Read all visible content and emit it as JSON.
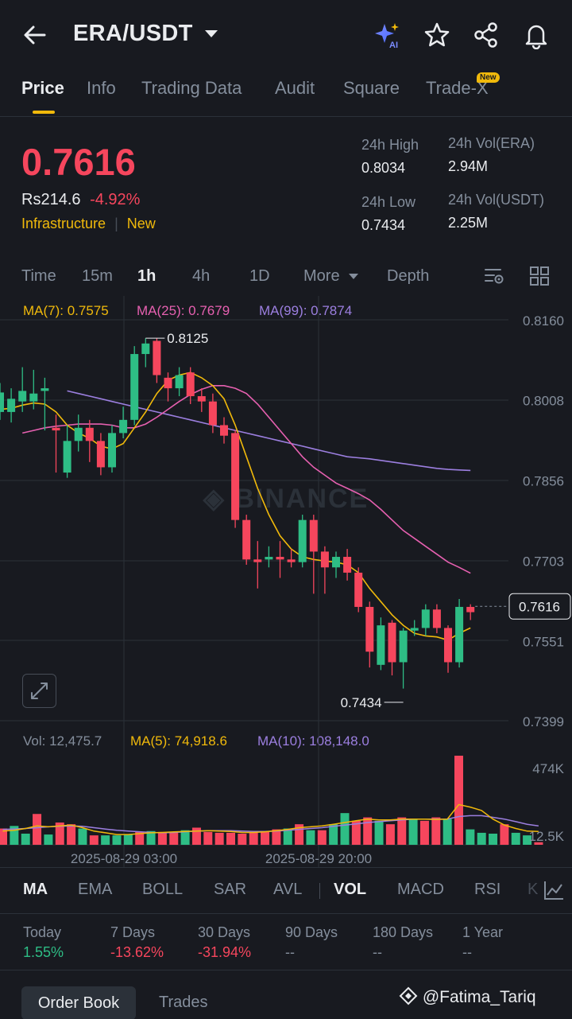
{
  "header": {
    "title": "ERA/USDT"
  },
  "tabs": [
    {
      "label": "Price"
    },
    {
      "label": "Info"
    },
    {
      "label": "Trading Data"
    },
    {
      "label": "Audit"
    },
    {
      "label": "Square"
    },
    {
      "label": "Trade-X",
      "badge": "New"
    }
  ],
  "ticker": {
    "price": "0.7616",
    "fiat": "Rs214.6",
    "change": "-4.92%",
    "tag1": "Infrastructure",
    "tag2": "New",
    "high_label": "24h High",
    "high_value": "0.8034",
    "low_label": "24h Low",
    "low_value": "0.7434",
    "vol_base_label": "24h Vol(ERA)",
    "vol_base_value": "2.94M",
    "vol_quote_label": "24h Vol(USDT)",
    "vol_quote_value": "2.25M"
  },
  "intervals": [
    "Time",
    "15m",
    "1h",
    "4h",
    "1D",
    "More",
    "Depth"
  ],
  "ma_legend": {
    "ma7": "MA(7): 0.7575",
    "ma25": "MA(25): 0.7679",
    "ma99": "MA(99): 0.7874"
  },
  "chart_data": {
    "type": "candlestick",
    "watermark": "BINANCE",
    "price_axis": [
      "0.8160",
      "0.8008",
      "0.7856",
      "0.7703",
      "0.7551",
      "0.7399"
    ],
    "last_price_tag": "0.7616",
    "high_marker": "0.8125",
    "low_marker": "0.7434",
    "x_labels": [
      "2025-08-29 03:00",
      "2025-08-29 20:00"
    ],
    "ylim": [
      0.7399,
      0.816
    ],
    "candles": [
      [
        0.7985,
        0.8022,
        0.797,
        0.804
      ],
      [
        0.7985,
        0.801,
        0.7965,
        0.803
      ],
      [
        0.8005,
        0.8025,
        0.7985,
        0.807
      ],
      [
        0.8005,
        0.802,
        0.799,
        0.8065
      ],
      [
        0.8025,
        0.803,
        0.795,
        0.805
      ],
      [
        0.7955,
        0.795,
        0.787,
        0.798
      ],
      [
        0.787,
        0.793,
        0.786,
        0.796
      ],
      [
        0.793,
        0.7955,
        0.791,
        0.798
      ],
      [
        0.7955,
        0.793,
        0.789,
        0.797
      ],
      [
        0.793,
        0.788,
        0.7865,
        0.7945
      ],
      [
        0.788,
        0.7945,
        0.787,
        0.796
      ],
      [
        0.7945,
        0.797,
        0.7935,
        0.7995
      ],
      [
        0.797,
        0.8095,
        0.796,
        0.811
      ],
      [
        0.8095,
        0.8115,
        0.807,
        0.8125
      ],
      [
        0.812,
        0.8055,
        0.804,
        0.8125
      ],
      [
        0.805,
        0.803,
        0.8005,
        0.806
      ],
      [
        0.803,
        0.8055,
        0.8015,
        0.807
      ],
      [
        0.806,
        0.8015,
        0.8,
        0.807
      ],
      [
        0.8015,
        0.8005,
        0.7985,
        0.803
      ],
      [
        0.8005,
        0.796,
        0.7945,
        0.802
      ],
      [
        0.796,
        0.794,
        0.7925,
        0.7975
      ],
      [
        0.7945,
        0.778,
        0.7765,
        0.795
      ],
      [
        0.778,
        0.7705,
        0.7695,
        0.779
      ],
      [
        0.7705,
        0.77,
        0.765,
        0.774
      ],
      [
        0.7705,
        0.771,
        0.769,
        0.773
      ],
      [
        0.771,
        0.7705,
        0.767,
        0.774
      ],
      [
        0.7705,
        0.77,
        0.769,
        0.7725
      ],
      [
        0.77,
        0.778,
        0.769,
        0.779
      ],
      [
        0.778,
        0.772,
        0.764,
        0.779
      ],
      [
        0.772,
        0.769,
        0.764,
        0.773
      ],
      [
        0.769,
        0.771,
        0.767,
        0.772
      ],
      [
        0.771,
        0.768,
        0.7665,
        0.7725
      ],
      [
        0.768,
        0.7615,
        0.7605,
        0.769
      ],
      [
        0.7615,
        0.753,
        0.75,
        0.7625
      ],
      [
        0.7505,
        0.758,
        0.7495,
        0.7595
      ],
      [
        0.7585,
        0.751,
        0.7485,
        0.759
      ],
      [
        0.751,
        0.757,
        0.746,
        0.7575
      ],
      [
        0.757,
        0.7575,
        0.756,
        0.759
      ],
      [
        0.7575,
        0.761,
        0.756,
        0.762
      ],
      [
        0.761,
        0.7575,
        0.7565,
        0.762
      ],
      [
        0.7575,
        0.751,
        0.749,
        0.758
      ],
      [
        0.751,
        0.7615,
        0.75,
        0.763
      ],
      [
        0.7615,
        0.7605,
        0.759,
        0.762
      ]
    ],
    "ma7": [
      0.799,
      0.7992,
      0.7998,
      0.8002,
      0.8,
      0.7985,
      0.796,
      0.7945,
      0.7935,
      0.792,
      0.7915,
      0.7925,
      0.7955,
      0.7985,
      0.802,
      0.8045,
      0.8055,
      0.806,
      0.805,
      0.8035,
      0.801,
      0.796,
      0.79,
      0.784,
      0.779,
      0.775,
      0.7725,
      0.771,
      0.7705,
      0.7702,
      0.77,
      0.7695,
      0.768,
      0.765,
      0.7625,
      0.76,
      0.758,
      0.7565,
      0.756,
      0.7558,
      0.7552,
      0.7565,
      0.7575
    ],
    "ma25": [
      0.7945,
      0.795,
      0.7955,
      0.7958,
      0.796,
      0.7962,
      0.7962,
      0.7962,
      0.796,
      0.7955,
      0.7955,
      0.7962,
      0.7975,
      0.799,
      0.8005,
      0.8018,
      0.8028,
      0.8035,
      0.8035,
      0.803,
      0.802,
      0.8,
      0.7975,
      0.795,
      0.7925,
      0.79,
      0.788,
      0.7865,
      0.785,
      0.784,
      0.783,
      0.7818,
      0.78,
      0.778,
      0.776,
      0.7745,
      0.773,
      0.7715,
      0.77,
      0.769,
      0.7679
    ],
    "ma99": [
      0.8025,
      0.802,
      0.8015,
      0.801,
      0.8005,
      0.8,
      0.7995,
      0.799,
      0.7985,
      0.798,
      0.7975,
      0.797,
      0.7965,
      0.796,
      0.7955,
      0.795,
      0.7945,
      0.794,
      0.7935,
      0.793,
      0.7925,
      0.792,
      0.7915,
      0.791,
      0.7905,
      0.79,
      0.7898,
      0.7896,
      0.7893,
      0.789,
      0.7887,
      0.7884,
      0.7881,
      0.7878,
      0.7876,
      0.7875,
      0.7874
    ]
  },
  "volume": {
    "legend_vol": "Vol: 12,475.7",
    "legend_ma5": "MA(5): 74,918.6",
    "legend_ma10": "MA(10): 108,148.0",
    "axis_top": "474K",
    "axis_bottom": "12.5K",
    "bars": [
      95,
      110,
      65,
      180,
      60,
      130,
      120,
      95,
      55,
      55,
      55,
      60,
      75,
      80,
      75,
      70,
      85,
      100,
      75,
      70,
      70,
      65,
      70,
      80,
      90,
      95,
      120,
      85,
      85,
      120,
      185,
      140,
      160,
      140,
      120,
      160,
      150,
      140,
      160,
      150,
      520,
      90,
      70,
      65,
      120,
      70,
      55,
      15
    ],
    "ma5": [
      80,
      85,
      95,
      110,
      105,
      110,
      115,
      100,
      80,
      70,
      60,
      60,
      65,
      70,
      72,
      75,
      78,
      80,
      82,
      80,
      78,
      72,
      72,
      76,
      82,
      90,
      100,
      105,
      110,
      120,
      130,
      140,
      150,
      145,
      145,
      150,
      150,
      150,
      148,
      150,
      235,
      220,
      200,
      150,
      115,
      95,
      80,
      78
    ],
    "ma10": [
      90,
      92,
      95,
      100,
      105,
      108,
      110,
      108,
      100,
      92,
      85,
      80,
      76,
      72,
      70,
      72,
      76,
      80,
      82,
      82,
      82,
      80,
      78,
      78,
      80,
      85,
      90,
      95,
      100,
      108,
      115,
      122,
      130,
      135,
      140,
      145,
      150,
      150,
      150,
      150,
      165,
      170,
      170,
      160,
      150,
      135,
      120,
      110
    ]
  },
  "indicators": [
    "MA",
    "EMA",
    "BOLL",
    "SAR",
    "AVL",
    "VOL",
    "MACD",
    "RSI",
    "K"
  ],
  "performance": [
    {
      "label": "Today",
      "value": "1.55%",
      "dir": "up"
    },
    {
      "label": "7 Days",
      "value": "-13.62%",
      "dir": "down"
    },
    {
      "label": "30 Days",
      "value": "-31.94%",
      "dir": "down"
    },
    {
      "label": "90 Days",
      "value": "--",
      "dir": "none"
    },
    {
      "label": "180 Days",
      "value": "--",
      "dir": "none"
    },
    {
      "label": "1 Year",
      "value": "--",
      "dir": "none"
    }
  ],
  "bottom_tabs": {
    "order_book": "Order Book",
    "trades": "Trades"
  },
  "watermark_user": "@Fatima_Tariq"
}
